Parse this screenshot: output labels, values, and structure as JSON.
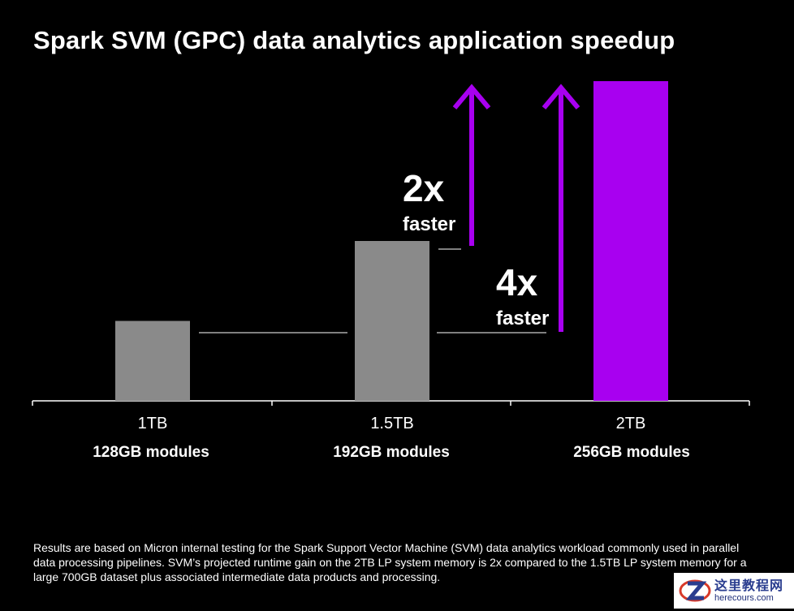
{
  "chart_data": {
    "type": "bar",
    "title": "Spark SVM (GPC) data analytics application speedup",
    "categories": [
      "1TB",
      "1.5TB",
      "2TB"
    ],
    "sublabels": [
      "128GB modules",
      "192GB modules",
      "256GB modules"
    ],
    "values": [
      1,
      2,
      4
    ],
    "ylim": [
      0,
      4
    ],
    "xlabel": "",
    "ylabel": "",
    "grid": false,
    "colors": [
      "#8a8a8a",
      "#8a8a8a",
      "#a800f0"
    ],
    "annotations": [
      {
        "value": "2x",
        "label": "faster",
        "from": 1,
        "to": 2
      },
      {
        "value": "4x",
        "label": "faster",
        "from": 0,
        "to": 2
      }
    ]
  },
  "footnote": "Results are based on Micron internal testing for the Spark Support Vector Machine (SVM) data analytics workload commonly used in parallel data processing pipelines. SVM’s projected runtime gain on the 2TB LP system memory is 2x compared to the 1.5TB LP system memory for a large 700GB dataset plus associated intermediate data products and processing.",
  "watermark": {
    "name": "这里教程网",
    "url": "herecours.com"
  },
  "colors": {
    "background": "#000000",
    "accent": "#a800f0",
    "bar_gray": "#8a8a8a",
    "text": "#ffffff"
  }
}
